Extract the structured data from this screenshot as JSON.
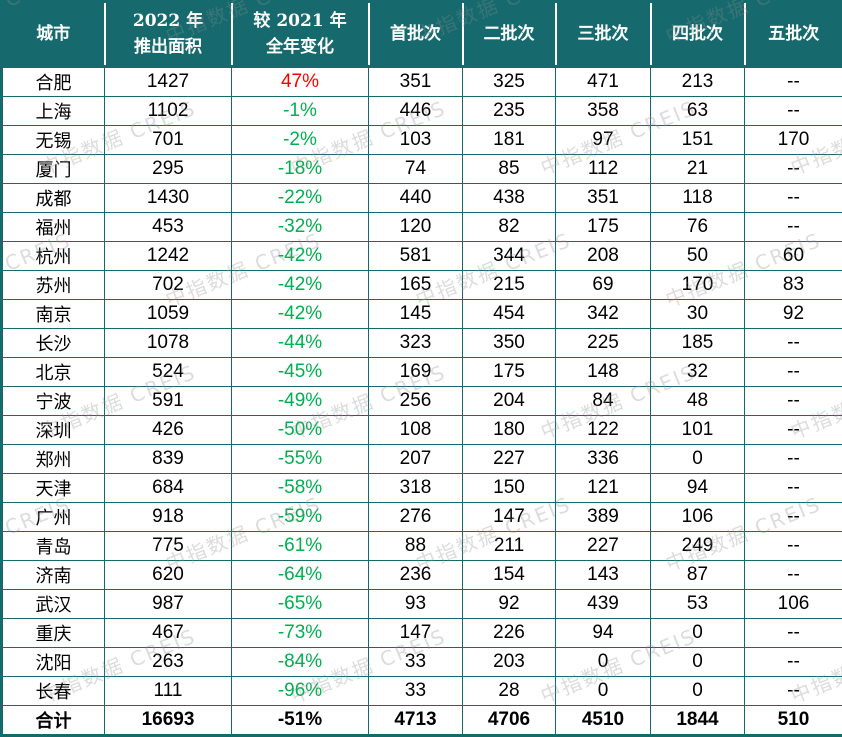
{
  "watermark": {
    "text": "中指数据 CREIS"
  },
  "colors": {
    "header_teal": "#166a6e",
    "positive_red": "#ff0000",
    "negative_green": "#00b050",
    "body_text": "#000000"
  },
  "header": {
    "col_city": "城市",
    "col_area_line1": "2022 年",
    "col_area_line2": "推出面积",
    "col_change_line1": "较 2021 年",
    "col_change_line2": "全年变化",
    "col_batch1": "首批次",
    "col_batch2": "二批次",
    "col_batch3": "三批次",
    "col_batch4": "四批次",
    "col_batch5": "五批次"
  },
  "chart_data": {
    "type": "table",
    "columns": [
      "城市",
      "2022 年推出面积",
      "较 2021 年全年变化",
      "首批次",
      "二批次",
      "三批次",
      "四批次",
      "五批次"
    ],
    "rows": [
      {
        "city": "合肥",
        "area": "1427",
        "change": "47%",
        "trend": "up",
        "batches": [
          "351",
          "325",
          "471",
          "213",
          "--"
        ]
      },
      {
        "city": "上海",
        "area": "1102",
        "change": "-1%",
        "trend": "down",
        "batches": [
          "446",
          "235",
          "358",
          "63",
          "--"
        ]
      },
      {
        "city": "无锡",
        "area": "701",
        "change": "-2%",
        "trend": "down",
        "batches": [
          "103",
          "181",
          "97",
          "151",
          "170"
        ]
      },
      {
        "city": "厦门",
        "area": "295",
        "change": "-18%",
        "trend": "down",
        "batches": [
          "74",
          "85",
          "112",
          "21",
          "--"
        ]
      },
      {
        "city": "成都",
        "area": "1430",
        "change": "-22%",
        "trend": "down",
        "batches": [
          "440",
          "438",
          "351",
          "118",
          "--"
        ]
      },
      {
        "city": "福州",
        "area": "453",
        "change": "-32%",
        "trend": "down",
        "batches": [
          "120",
          "82",
          "175",
          "76",
          "--"
        ]
      },
      {
        "city": "杭州",
        "area": "1242",
        "change": "-42%",
        "trend": "down",
        "batches": [
          "581",
          "344",
          "208",
          "50",
          "60"
        ]
      },
      {
        "city": "苏州",
        "area": "702",
        "change": "-42%",
        "trend": "down",
        "batches": [
          "165",
          "215",
          "69",
          "170",
          "83"
        ]
      },
      {
        "city": "南京",
        "area": "1059",
        "change": "-42%",
        "trend": "down",
        "batches": [
          "145",
          "454",
          "342",
          "30",
          "92"
        ]
      },
      {
        "city": "长沙",
        "area": "1078",
        "change": "-44%",
        "trend": "down",
        "batches": [
          "323",
          "350",
          "225",
          "185",
          "--"
        ]
      },
      {
        "city": "北京",
        "area": "524",
        "change": "-45%",
        "trend": "down",
        "batches": [
          "169",
          "175",
          "148",
          "32",
          "--"
        ]
      },
      {
        "city": "宁波",
        "area": "591",
        "change": "-49%",
        "trend": "down",
        "batches": [
          "256",
          "204",
          "84",
          "48",
          "--"
        ]
      },
      {
        "city": "深圳",
        "area": "426",
        "change": "-50%",
        "trend": "down",
        "batches": [
          "108",
          "180",
          "122",
          "101",
          "--"
        ]
      },
      {
        "city": "郑州",
        "area": "839",
        "change": "-55%",
        "trend": "down",
        "batches": [
          "207",
          "227",
          "336",
          "0",
          "--"
        ]
      },
      {
        "city": "天津",
        "area": "684",
        "change": "-58%",
        "trend": "down",
        "batches": [
          "318",
          "150",
          "121",
          "94",
          "--"
        ]
      },
      {
        "city": "广州",
        "area": "918",
        "change": "-59%",
        "trend": "down",
        "batches": [
          "276",
          "147",
          "389",
          "106",
          "--"
        ]
      },
      {
        "city": "青岛",
        "area": "775",
        "change": "-61%",
        "trend": "down",
        "batches": [
          "88",
          "211",
          "227",
          "249",
          "--"
        ]
      },
      {
        "city": "济南",
        "area": "620",
        "change": "-64%",
        "trend": "down",
        "batches": [
          "236",
          "154",
          "143",
          "87",
          "--"
        ]
      },
      {
        "city": "武汉",
        "area": "987",
        "change": "-65%",
        "trend": "down",
        "batches": [
          "93",
          "92",
          "439",
          "53",
          "106"
        ]
      },
      {
        "city": "重庆",
        "area": "467",
        "change": "-73%",
        "trend": "down",
        "batches": [
          "147",
          "226",
          "94",
          "0",
          "--"
        ]
      },
      {
        "city": "沈阳",
        "area": "263",
        "change": "-84%",
        "trend": "down",
        "batches": [
          "33",
          "203",
          "0",
          "0",
          "--"
        ]
      },
      {
        "city": "长春",
        "area": "111",
        "change": "-96%",
        "trend": "down",
        "batches": [
          "33",
          "28",
          "0",
          "0",
          "--"
        ]
      }
    ],
    "total_row": {
      "city": "合计",
      "area": "16693",
      "change": "-51%",
      "trend": "total",
      "batches": [
        "4713",
        "4706",
        "4510",
        "1844",
        "510"
      ]
    }
  }
}
